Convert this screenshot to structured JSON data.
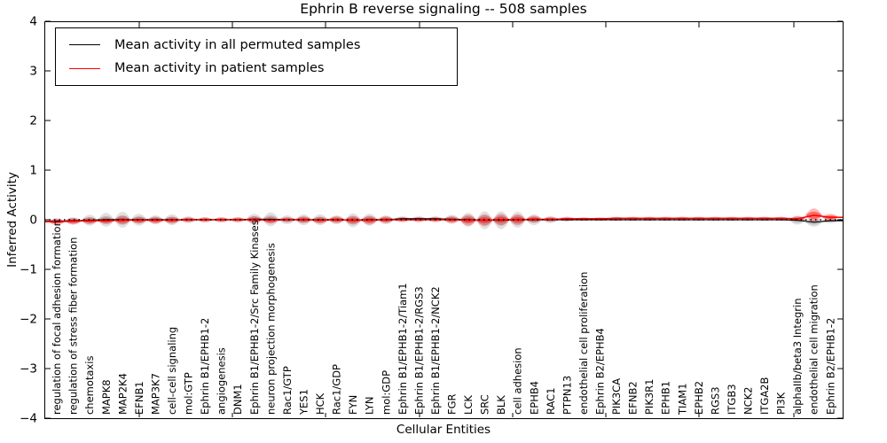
{
  "title": "Ephrin B reverse signaling -- 508 samples",
  "xlabel": "Cellular Entities",
  "ylabel": "Inferred Activity",
  "legend": {
    "items": [
      {
        "label": "Mean activity in all permuted samples",
        "color": "#000000"
      },
      {
        "label": "Mean activity in patient samples",
        "color": "#ff0000"
      }
    ]
  },
  "chart_data": {
    "type": "violin",
    "title": "Ephrin B reverse signaling -- 508 samples",
    "xlabel": "Cellular Entities",
    "ylabel": "Inferred Activity",
    "ylim": [
      -4,
      4
    ],
    "y_tick_labels": [
      "4",
      "3",
      "2",
      "1",
      "0",
      "−1",
      "−2",
      "−3",
      "−4"
    ],
    "zero_reference_line": 0,
    "grid": false,
    "legend_position": "upper-left",
    "categories": [
      "regulation of focal adhesion formation",
      "regulation of stress fiber formation",
      "chemotaxis",
      "MAPK8",
      "MAP2K4",
      "EFNB1",
      "MAP3K7",
      "cell-cell signaling",
      "mol:GTP",
      "Ephrin B1/EPHB1-2",
      "angiogenesis",
      "DNM1",
      "Ephrin B1/EPHB1-2/Src Family Kinases",
      "neuron projection morphogenesis",
      "Rac1/GTP",
      "YES1",
      "HCK",
      "Rac1/GDP",
      "FYN",
      "LYN",
      "mol:GDP",
      "Ephrin B1/EPHB1-2/Tiam1",
      "Ephrin B1/EPHB1-2/RGS3",
      "Ephrin B1/EPHB1-2/NCK2",
      "FGR",
      "LCK",
      "SRC",
      "BLK",
      "cell adhesion",
      "EPHB4",
      "RAC1",
      "PTPN13",
      "endothelial cell proliferation",
      "Ephrin B2/EPHB4",
      "PIK3CA",
      "EFNB2",
      "PIK3R1",
      "EPHB1",
      "TIAM1",
      "EPHB2",
      "RGS3",
      "ITGB3",
      "NCK2",
      "ITGA2B",
      "PI3K",
      "alphaIIb/beta3 Integrin",
      "endothelial cell migration",
      "Ephrin B2/EPHB1-2"
    ],
    "series": [
      {
        "name": "Mean activity in all permuted samples",
        "color": "#000000",
        "means": [
          -0.03,
          -0.02,
          -0.01,
          0,
          0,
          0,
          0,
          0,
          0,
          0,
          0,
          0,
          0.01,
          0.01,
          0,
          0,
          0,
          0,
          -0.01,
          0,
          0,
          0.02,
          0.02,
          0.02,
          0.01,
          0,
          -0.01,
          -0.01,
          0,
          0,
          0,
          0,
          0,
          0,
          0,
          0,
          0,
          0,
          0,
          0,
          0,
          0,
          0,
          0,
          0,
          -0.01,
          -0.05,
          -0.02
        ],
        "spread": [
          0.05,
          0.07,
          0.11,
          0.14,
          0.16,
          0.12,
          0.09,
          0.11,
          0.07,
          0.05,
          0.05,
          0.05,
          0.11,
          0.14,
          0.09,
          0.11,
          0.11,
          0.09,
          0.14,
          0.12,
          0.09,
          0.05,
          0.05,
          0.05,
          0.09,
          0.14,
          0.18,
          0.18,
          0.16,
          0.11,
          0.07,
          0.04,
          0.03,
          0.03,
          0.03,
          0.03,
          0.03,
          0.03,
          0.03,
          0.03,
          0.03,
          0.03,
          0.03,
          0.03,
          0.03,
          0.09,
          0.09,
          0.05
        ]
      },
      {
        "name": "Mean activity in patient samples",
        "color": "#ff0000",
        "means": [
          -0.04,
          -0.03,
          -0.02,
          -0.02,
          -0.01,
          -0.01,
          -0.01,
          -0.01,
          0,
          0,
          0,
          0,
          0,
          -0.01,
          0,
          0,
          -0.01,
          0,
          -0.01,
          -0.01,
          0,
          0,
          0,
          0,
          0,
          -0.01,
          -0.01,
          0,
          0,
          0.01,
          0.01,
          0.02,
          0.02,
          0.02,
          0.03,
          0.03,
          0.03,
          0.03,
          0.03,
          0.03,
          0.03,
          0.03,
          0.03,
          0.03,
          0.03,
          0.02,
          0.09,
          0.05
        ],
        "spread": [
          0.07,
          0.07,
          0.07,
          0.07,
          0.09,
          0.07,
          0.07,
          0.07,
          0.05,
          0.05,
          0.05,
          0.05,
          0.07,
          0.07,
          0.05,
          0.07,
          0.07,
          0.07,
          0.09,
          0.09,
          0.07,
          0.05,
          0.05,
          0.05,
          0.07,
          0.11,
          0.12,
          0.12,
          0.11,
          0.07,
          0.05,
          0.04,
          0.03,
          0.03,
          0.03,
          0.03,
          0.03,
          0.03,
          0.03,
          0.03,
          0.03,
          0.03,
          0.03,
          0.03,
          0.03,
          0.05,
          0.14,
          0.07
        ]
      }
    ]
  }
}
